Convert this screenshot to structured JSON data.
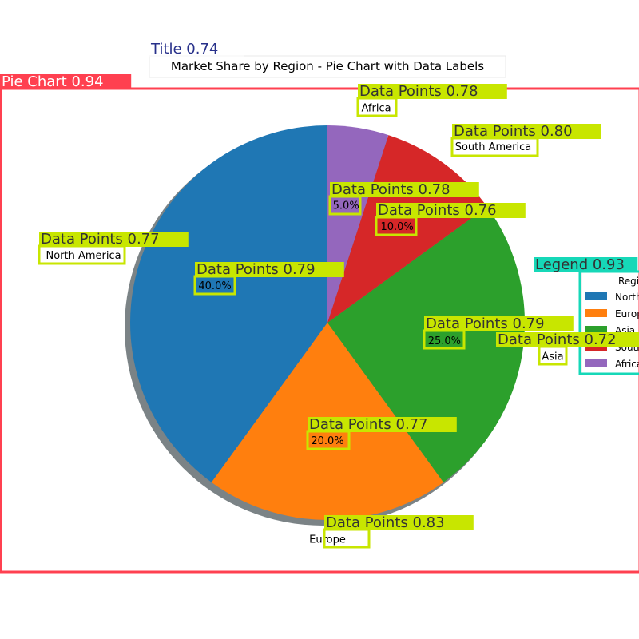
{
  "chart_data": {
    "type": "pie",
    "title": "Market Share by Region - Pie Chart with Data Labels",
    "categories": [
      "North America",
      "Europe",
      "Asia",
      "South America",
      "Africa"
    ],
    "values": [
      40.0,
      20.0,
      25.0,
      10.0,
      5.0
    ],
    "value_labels": [
      "40.0%",
      "20.0%",
      "25.0%",
      "10.0%",
      "5.0%"
    ],
    "colors": [
      "#1f77b4",
      "#ff7f0e",
      "#2ca02c",
      "#d62728",
      "#9467bd"
    ],
    "start_angle_deg": 90,
    "direction": "counterclockwise",
    "shadow": true,
    "legend": {
      "title": "Region",
      "placement": "right",
      "entries": [
        "North America",
        "Europe",
        "Asia",
        "South America",
        "Africa"
      ]
    }
  },
  "detections": [
    {
      "label": "Title 0.74",
      "kind": "title"
    },
    {
      "label": "Pie Chart 0.94",
      "kind": "chart"
    },
    {
      "label": "Legend 0.93",
      "kind": "legend"
    },
    {
      "label": "Data Points 0.78",
      "kind": "points"
    },
    {
      "label": "Data Points 0.80",
      "kind": "points"
    },
    {
      "label": "Data Points 0.78",
      "kind": "points"
    },
    {
      "label": "Data Points 0.76",
      "kind": "points"
    },
    {
      "label": "Data Points 0.77",
      "kind": "points"
    },
    {
      "label": "Data Points 0.79",
      "kind": "points"
    },
    {
      "label": "Data Points 0.79",
      "kind": "points"
    },
    {
      "label": "Data Points 0.72",
      "kind": "points"
    },
    {
      "label": "Data Points 0.77",
      "kind": "points"
    },
    {
      "label": "Data Points 0.83",
      "kind": "points"
    }
  ],
  "detection_colors": {
    "title": "#27308a",
    "chart": "#ff4050",
    "legend": "#16d8b8",
    "points": "#c8e600"
  }
}
